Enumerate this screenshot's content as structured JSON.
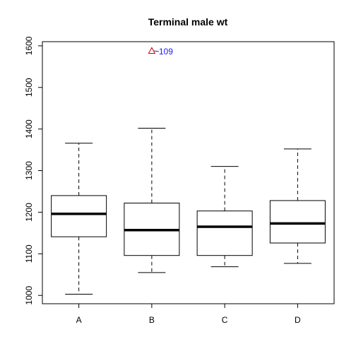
{
  "chart_data": {
    "type": "boxplot",
    "title": "Terminal male wt",
    "xlabel": "",
    "ylabel": "",
    "categories": [
      "A",
      "B",
      "C",
      "D"
    ],
    "yticks": [
      1000,
      1100,
      1200,
      1300,
      1400,
      1500,
      1600
    ],
    "ylim": [
      980,
      1610
    ],
    "boxes": [
      {
        "category": "A",
        "whisker_low": 1003,
        "q1": 1141,
        "median": 1196,
        "q3": 1240,
        "whisker_high": 1366
      },
      {
        "category": "B",
        "whisker_low": 1055,
        "q1": 1096,
        "median": 1157,
        "q3": 1222,
        "whisker_high": 1402
      },
      {
        "category": "C",
        "whisker_low": 1069,
        "q1": 1096,
        "median": 1165,
        "q3": 1203,
        "whisker_high": 1310
      },
      {
        "category": "D",
        "whisker_low": 1077,
        "q1": 1126,
        "median": 1173,
        "q3": 1228,
        "whisker_high": 1352
      }
    ],
    "outliers": [
      {
        "category": "B",
        "value": 1588,
        "label": "109",
        "marker": "triangle"
      }
    ],
    "colors": {
      "outlier_marker": "#cc0000",
      "outlier_label": "#1a1aff"
    },
    "grid": false
  }
}
